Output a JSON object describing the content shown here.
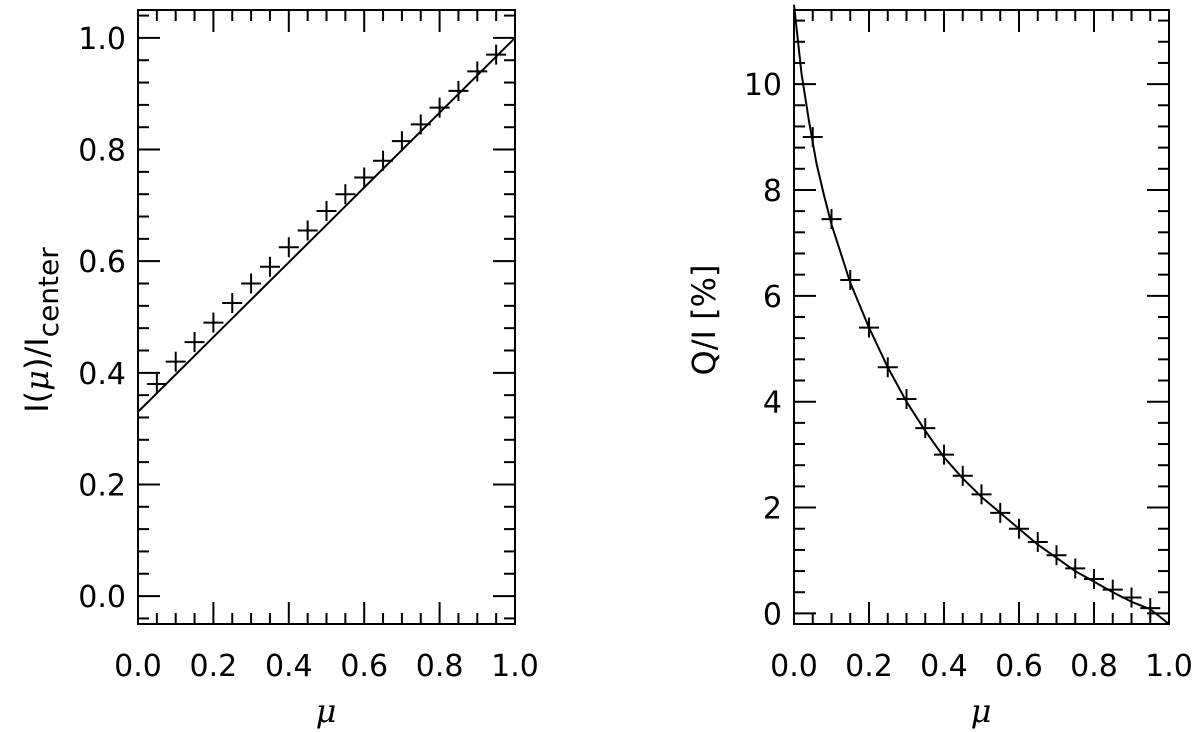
{
  "chart_data": [
    {
      "type": "line",
      "xlabel": "μ",
      "ylabel": {
        "prefix": "I(",
        "mu": "μ",
        "mid": ")/I",
        "sub": "center"
      },
      "xlim": [
        0.0,
        1.0
      ],
      "ylim": [
        -0.05,
        1.05
      ],
      "x_ticks": [
        "0.0",
        "0.2",
        "0.4",
        "0.6",
        "0.8",
        "1.0"
      ],
      "y_ticks": [
        "0.0",
        "0.2",
        "0.4",
        "0.6",
        "0.8",
        "1.0"
      ],
      "series": [
        {
          "style": "line",
          "x": [
            0.0,
            0.1,
            0.2,
            0.3,
            0.4,
            0.5,
            0.6,
            0.7,
            0.8,
            0.9,
            1.0
          ],
          "y": [
            0.33,
            0.397,
            0.464,
            0.531,
            0.598,
            0.665,
            0.732,
            0.799,
            0.866,
            0.933,
            1.0
          ]
        },
        {
          "style": "plus-markers",
          "x": [
            0.05,
            0.1,
            0.15,
            0.2,
            0.25,
            0.3,
            0.35,
            0.4,
            0.45,
            0.5,
            0.55,
            0.6,
            0.65,
            0.7,
            0.75,
            0.8,
            0.85,
            0.9,
            0.95
          ],
          "y": [
            0.38,
            0.42,
            0.455,
            0.49,
            0.525,
            0.56,
            0.59,
            0.625,
            0.655,
            0.69,
            0.72,
            0.75,
            0.78,
            0.815,
            0.845,
            0.875,
            0.905,
            0.94,
            0.97
          ]
        }
      ]
    },
    {
      "type": "line",
      "xlabel": "μ",
      "ylabel": {
        "text": "Q/I [%]"
      },
      "xlim": [
        0.0,
        1.0
      ],
      "ylim": [
        -0.2,
        11.4
      ],
      "x_ticks": [
        "0.0",
        "0.2",
        "0.4",
        "0.6",
        "0.8",
        "1.0"
      ],
      "y_ticks": [
        "0",
        "2",
        "4",
        "6",
        "8",
        "10"
      ],
      "series": [
        {
          "style": "line",
          "x": [
            0.0,
            0.02,
            0.04,
            0.06,
            0.08,
            0.1,
            0.15,
            0.2,
            0.25,
            0.3,
            0.35,
            0.4,
            0.45,
            0.5,
            0.55,
            0.6,
            0.65,
            0.7,
            0.75,
            0.8,
            0.85,
            0.9,
            0.95,
            1.0
          ],
          "y": [
            11.5,
            10.2,
            9.3,
            8.5,
            7.9,
            7.35,
            6.25,
            5.4,
            4.65,
            4.0,
            3.45,
            2.95,
            2.55,
            2.2,
            1.9,
            1.6,
            1.3,
            1.05,
            0.8,
            0.6,
            0.4,
            0.22,
            0.08,
            -0.2
          ]
        },
        {
          "style": "plus-markers",
          "x": [
            0.05,
            0.1,
            0.15,
            0.2,
            0.25,
            0.3,
            0.35,
            0.4,
            0.45,
            0.5,
            0.55,
            0.6,
            0.65,
            0.7,
            0.75,
            0.8,
            0.85,
            0.9,
            0.95
          ],
          "y": [
            9.0,
            7.45,
            6.3,
            5.4,
            4.65,
            4.05,
            3.5,
            3.0,
            2.6,
            2.25,
            1.9,
            1.6,
            1.35,
            1.1,
            0.85,
            0.65,
            0.45,
            0.3,
            0.1
          ]
        }
      ]
    }
  ]
}
